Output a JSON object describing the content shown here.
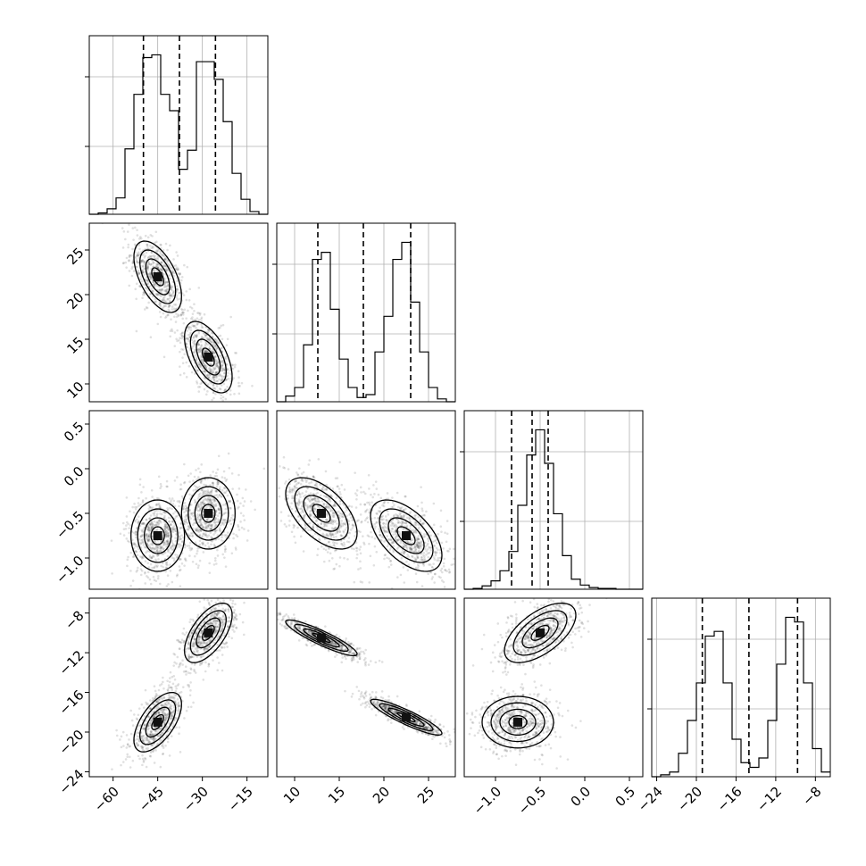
{
  "chart_data": {
    "type": "scatter",
    "kind": "corner-plot",
    "grid": true,
    "parameters": [
      {
        "range": [
          -68,
          -8
        ],
        "ticks": [
          -60,
          -45,
          -30,
          -15
        ],
        "tick_labels": [
          "−60",
          "−45",
          "−30",
          "−15"
        ],
        "quantiles": [
          -49.8,
          -37.7,
          -25.6
        ]
      },
      {
        "range": [
          8,
          28
        ],
        "ticks": [
          10,
          15,
          20,
          25
        ],
        "tick_labels": [
          "10",
          "15",
          "20",
          "25"
        ],
        "quantiles": [
          12.6,
          17.7,
          23.0
        ]
      },
      {
        "range": [
          -1.35,
          0.65
        ],
        "ticks": [
          -1.0,
          -0.5,
          0.0,
          0.5
        ],
        "tick_labels": [
          "−1.0",
          "−0.5",
          "0.0",
          "0.5"
        ],
        "quantiles": [
          -0.82,
          -0.59,
          -0.41
        ]
      },
      {
        "range": [
          -24.5,
          -6.5
        ],
        "ticks": [
          -24,
          -20,
          -16,
          -12,
          -8
        ],
        "tick_labels": [
          "−24",
          "−20",
          "−16",
          "−12",
          "−8"
        ],
        "quantiles": [
          -19.4,
          -14.7,
          -9.8
        ]
      }
    ],
    "marginals": [
      {
        "bin_edges": [
          -68,
          -65,
          -62,
          -59,
          -56,
          -53,
          -50,
          -47,
          -44,
          -41,
          -38,
          -35,
          -32,
          -29,
          -26,
          -23,
          -20,
          -17,
          -14,
          -11,
          -8
        ],
        "counts": [
          0,
          1,
          4,
          12,
          48,
          88,
          115,
          117,
          88,
          76,
          33,
          47,
          112,
          112,
          99,
          68,
          30,
          11,
          2,
          0
        ]
      },
      {
        "bin_edges": [
          8,
          9,
          10,
          11,
          12,
          13,
          14,
          15,
          16,
          17,
          18,
          19,
          20,
          21,
          22,
          23,
          24,
          25,
          26,
          27,
          28
        ],
        "counts": [
          0,
          4,
          10,
          40,
          100,
          105,
          65,
          30,
          10,
          3,
          5,
          35,
          60,
          100,
          112,
          70,
          35,
          10,
          2,
          0
        ]
      },
      {
        "bin_edges": [
          -1.35,
          -1.25,
          -1.15,
          -1.05,
          -0.95,
          -0.85,
          -0.75,
          -0.65,
          -0.55,
          -0.45,
          -0.35,
          -0.25,
          -0.15,
          -0.05,
          0.05,
          0.15,
          0.25,
          0.35,
          0.45,
          0.55,
          0.65
        ],
        "counts": [
          0,
          1,
          4,
          10,
          22,
          45,
          100,
          160,
          190,
          150,
          90,
          40,
          12,
          5,
          2,
          1,
          1,
          0,
          0,
          0
        ]
      },
      {
        "bin_edges": [
          -24.5,
          -23.6,
          -22.7,
          -21.8,
          -20.9,
          -20.0,
          -19.1,
          -18.2,
          -17.3,
          -16.4,
          -15.5,
          -14.6,
          -13.7,
          -12.8,
          -11.9,
          -11.0,
          -10.1,
          -9.2,
          -8.3,
          -7.4,
          -6.5
        ],
        "counts": [
          0,
          2,
          5,
          25,
          60,
          100,
          150,
          155,
          100,
          40,
          15,
          10,
          20,
          60,
          120,
          170,
          165,
          100,
          30,
          5
        ]
      }
    ],
    "joint": [
      {
        "i": 0,
        "j": 1,
        "modes": [
          {
            "mean": [
              -45,
              22
            ],
            "sd": [
              4,
              2
            ],
            "rho": -0.55
          },
          {
            "mean": [
              -28,
              13
            ],
            "sd": [
              4,
              2
            ],
            "rho": -0.55
          }
        ]
      },
      {
        "i": 0,
        "j": 2,
        "modes": [
          {
            "mean": [
              -45,
              -0.75
            ],
            "sd": [
              4.5,
              0.2
            ],
            "rho": 0.0
          },
          {
            "mean": [
              -28,
              -0.5
            ],
            "sd": [
              4.5,
              0.2
            ],
            "rho": 0.0
          }
        ]
      },
      {
        "i": 0,
        "j": 3,
        "modes": [
          {
            "mean": [
              -45,
              -19
            ],
            "sd": [
              4,
              1.5
            ],
            "rho": 0.6
          },
          {
            "mean": [
              -28,
              -10
            ],
            "sd": [
              4,
              1.5
            ],
            "rho": 0.6
          }
        ]
      },
      {
        "i": 1,
        "j": 2,
        "modes": [
          {
            "mean": [
              13,
              -0.5
            ],
            "sd": [
              2,
              0.2
            ],
            "rho": -0.55
          },
          {
            "mean": [
              22.5,
              -0.75
            ],
            "sd": [
              2,
              0.2
            ],
            "rho": -0.55
          }
        ]
      },
      {
        "i": 1,
        "j": 3,
        "modes": [
          {
            "mean": [
              13,
              -10.5
            ],
            "sd": [
              2,
              0.9
            ],
            "rho": -0.9
          },
          {
            "mean": [
              22.5,
              -18.5
            ],
            "sd": [
              2,
              0.9
            ],
            "rho": -0.9
          }
        ]
      },
      {
        "i": 2,
        "j": 3,
        "modes": [
          {
            "mean": [
              -0.5,
              -10
            ],
            "sd": [
              0.2,
              1.5
            ],
            "rho": 0.6
          },
          {
            "mean": [
              -0.75,
              -19
            ],
            "sd": [
              0.2,
              1.3
            ],
            "rho": 0.0
          }
        ]
      }
    ]
  }
}
